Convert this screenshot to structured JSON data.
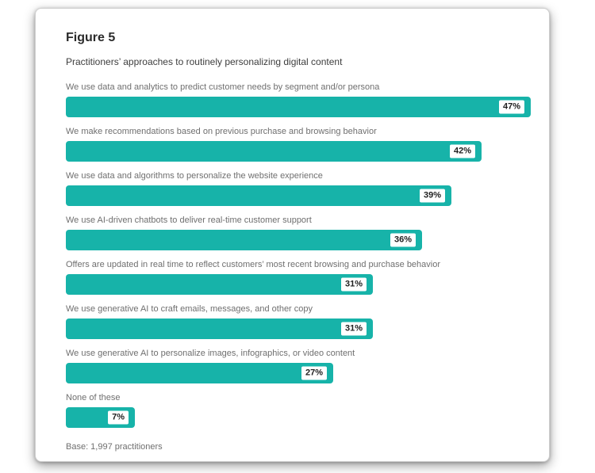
{
  "figure": {
    "title": "Figure 5",
    "subtitle": "Practitioners’ approaches to routinely personalizing digital content",
    "base_note": "Base: 1,997 practitioners"
  },
  "colors": {
    "bar": "#17B3A9",
    "card_background": "#FFFFFF",
    "label_text": "#6F6F6F",
    "title_text": "#2B2B2B"
  },
  "chart_data": {
    "type": "bar",
    "orientation": "horizontal",
    "title": "Figure 5",
    "subtitle": "Practitioners’ approaches to routinely personalizing digital content",
    "categories": [
      "We use data and analytics to predict customer needs by segment and/or persona",
      "We make recommendations based on previous purchase and browsing behavior",
      "We use data and algorithms to personalize the website experience",
      "We use AI-driven chatbots to deliver real-time customer support",
      "Offers are updated in real time to reflect customers’ most recent browsing and purchase behavior",
      "We use generative AI to craft emails, messages, and other copy",
      "We use generative AI to personalize images, infographics, or video content",
      "None of these"
    ],
    "values": [
      47,
      42,
      39,
      36,
      31,
      31,
      27,
      7
    ],
    "value_labels": [
      "47%",
      "42%",
      "39%",
      "36%",
      "31%",
      "31%",
      "27%",
      "7%"
    ],
    "unit": "%",
    "xlim": [
      0,
      47
    ],
    "grid": false,
    "legend": false,
    "bar_color": "#17B3A9",
    "value_label_style": "white-badge-inside-bar-right",
    "base_note": "Base: 1,997 practitioners"
  }
}
